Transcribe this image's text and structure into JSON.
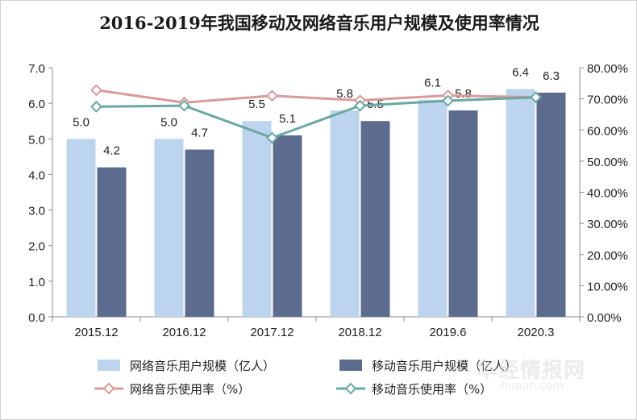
{
  "chart_data": {
    "type": "bar",
    "title": "2016-2019年我国移动及网络音乐用户规模及使用率情况",
    "categories": [
      "2015.12",
      "2016.12",
      "2017.12",
      "2018.12",
      "2019.6",
      "2020.3"
    ],
    "series": [
      {
        "name": "网络音乐用户规模（亿人）",
        "type": "bar",
        "axis": "left",
        "color": "#bcd4ee",
        "values": [
          5.0,
          5.0,
          5.5,
          5.8,
          6.1,
          6.4
        ],
        "labels": [
          "5.0",
          "5.0",
          "5.5",
          "5.8",
          "6.1",
          "6.4"
        ]
      },
      {
        "name": "移动音乐用户规模（亿人）",
        "type": "bar",
        "axis": "left",
        "color": "#5d6b8f",
        "values": [
          4.2,
          4.7,
          5.1,
          5.5,
          5.8,
          6.3
        ],
        "labels": [
          "4.2",
          "4.7",
          "5.1",
          "5.5",
          "5.8",
          "6.3"
        ]
      },
      {
        "name": "网络音乐使用率（%）",
        "type": "line",
        "axis": "right",
        "color": "#d99a9a",
        "values": [
          72.8,
          68.8,
          71.0,
          69.5,
          71.1,
          70.5
        ]
      },
      {
        "name": "移动音乐使用率（%）",
        "type": "line",
        "axis": "right",
        "color": "#6aa8a3",
        "values": [
          67.5,
          67.8,
          57.5,
          67.8,
          69.4,
          70.5
        ]
      }
    ],
    "yleft": {
      "min": 0,
      "max": 7,
      "ticks": [
        "0.0",
        "1.0",
        "2.0",
        "3.0",
        "4.0",
        "5.0",
        "6.0",
        "7.0"
      ]
    },
    "yright": {
      "min": 0,
      "max": 80,
      "ticks": [
        "0.00%",
        "10.00%",
        "20.00%",
        "30.00%",
        "40.00%",
        "50.00%",
        "60.00%",
        "70.00%",
        "80.00%"
      ]
    },
    "grid": false,
    "legend_position": "bottom"
  },
  "watermark": {
    "text1": "华经情报网",
    "text2": "huaon.com"
  }
}
